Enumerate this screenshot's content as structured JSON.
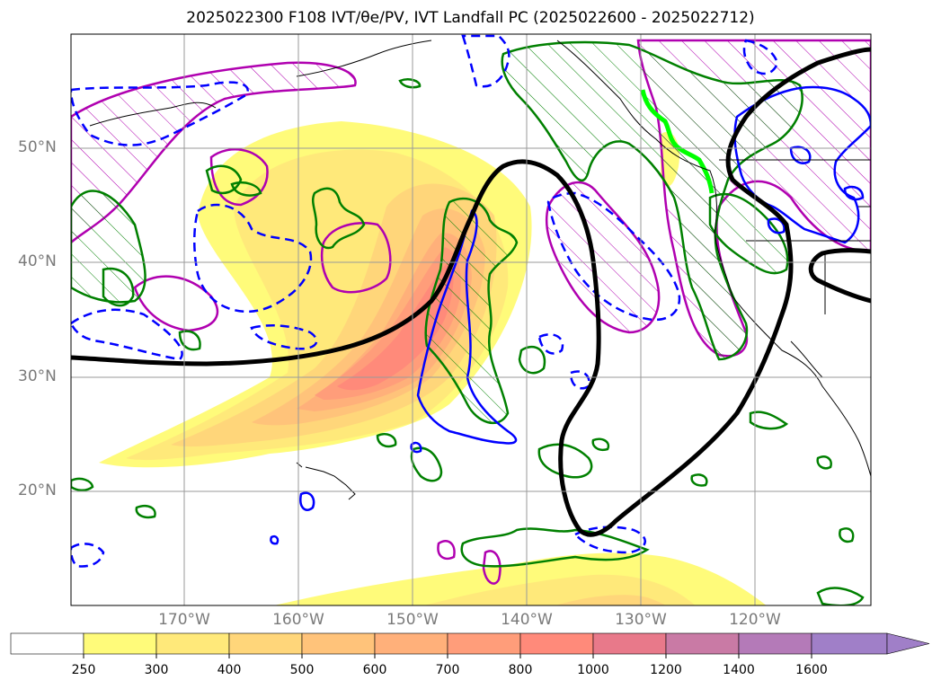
{
  "title": "2025022300 F108 IVT/θe/PV, IVT Landfall PC (2025022600 - 2025022712)",
  "lat_labels": [
    "50°N",
    "40°N",
    "30°N",
    "20°N"
  ],
  "lon_labels": [
    "170°W",
    "160°W",
    "150°W",
    "140°W",
    "130°W",
    "120°W"
  ],
  "colorbar": {
    "ticks": [
      "250",
      "300",
      "400",
      "500",
      "600",
      "700",
      "800",
      "1000",
      "1200",
      "1400",
      "1600"
    ],
    "colors": [
      "#ffffff",
      "#fffb7a",
      "#ffe97a",
      "#ffd67a",
      "#ffc37a",
      "#ffb07a",
      "#ff9d7a",
      "#ff8a7a",
      "#e8798a",
      "#c97aa5",
      "#b47ab8",
      "#a07fc8"
    ],
    "extend": "max"
  },
  "legend_colors": {
    "ivt_high": "#ff8a7a",
    "theta_e_line": "#000000",
    "pv_positive": "#008000",
    "pv_negative": "#0000ff",
    "landfall_pc": "#b000b0",
    "landfall_track": "#00ff00"
  }
}
